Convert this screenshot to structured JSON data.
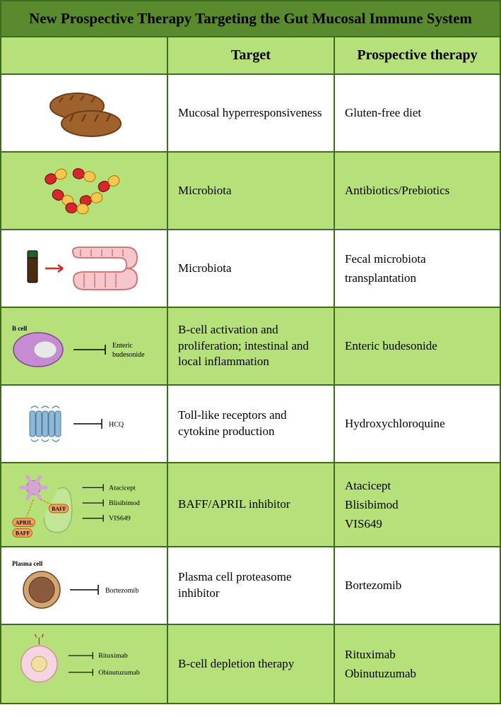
{
  "title": "New Prospective Therapy Targeting the Gut Mucosal Immune System",
  "headers": {
    "target": "Target",
    "therapy": "Prospective therapy"
  },
  "colors": {
    "border": "#3d6b1f",
    "titleBg": "#5a8a2e",
    "headerBg": "#b5e07a",
    "rowWhite": "#ffffff",
    "rowGreen": "#b5e07a",
    "bread": "#a0622d",
    "breadDark": "#6b3e18",
    "pillRed": "#d62828",
    "pillYellow": "#f9c74f",
    "vial": "#4a2c10",
    "intestine": "#f5c6cb",
    "intestineOutline": "#c97a7a",
    "bcell": "#c78bd4",
    "bcellNucleus": "#e8e8e8",
    "tlr": "#8fb8d6",
    "dendritic": "#d4a5d4",
    "april": "#f4a261",
    "baff": "#f4a261",
    "plasma": "#8b5a3c",
    "plasmaRing": "#d4a574",
    "bcellPink": "#f5d6e0"
  },
  "rows": [
    {
      "icon": "bread",
      "target": "Mucosal hyperresponsiveness",
      "therapy": "Gluten-free diet",
      "bg": "white"
    },
    {
      "icon": "pills",
      "target": "Microbiota",
      "therapy": "Antibiotics/Prebiotics",
      "bg": "green"
    },
    {
      "icon": "fmt",
      "target": "Microbiota",
      "therapy": "Fecal microbiota transplantation",
      "bg": "white"
    },
    {
      "icon": "bcell",
      "iconLabels": {
        "top": "B cell",
        "right": "Enteric budesonide"
      },
      "target": "B-cell activation and proliferation; intestinal and local inflammation",
      "therapy": "Enteric budesonide",
      "bg": "green"
    },
    {
      "icon": "tlr",
      "iconLabels": {
        "right": "HCQ"
      },
      "target": "Toll-like receptors and cytokine production",
      "therapy": "Hydroxychloroquine",
      "bg": "white"
    },
    {
      "icon": "baff",
      "iconLabels": {
        "r1": "Atacicept",
        "r2": "Blisibimod",
        "r3": "VIS649",
        "april": "APRIL",
        "baff": "BAFF"
      },
      "target": "BAFF/APRIL inhibitor",
      "therapy": "Atacicept\nBlisibimod\nVIS649",
      "bg": "green"
    },
    {
      "icon": "plasma",
      "iconLabels": {
        "top": "Plasma cell",
        "right": "Bortezomib"
      },
      "target": "Plasma cell proteasome inhibitor",
      "therapy": "Bortezomib",
      "bg": "white"
    },
    {
      "icon": "bcell2",
      "iconLabels": {
        "r1": "Rituximab",
        "r2": "Obinutuzumab"
      },
      "target": "B-cell depletion therapy",
      "therapy": "Rituximab\nObinutuzumab",
      "bg": "green"
    }
  ]
}
